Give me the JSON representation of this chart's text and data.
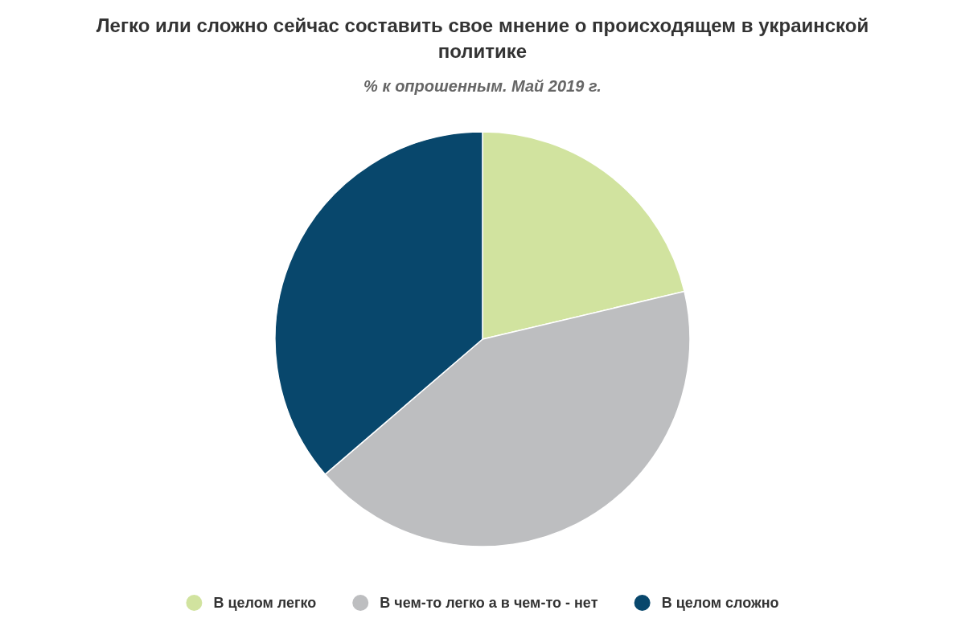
{
  "chart_data": {
    "type": "pie",
    "title": "Легко или сложно сейчас составить свое мнение о происходящем в украинской политике",
    "subtitle": "% к опрошенным. Май 2019 г.",
    "categories": [
      "В целом легко",
      "В чем-то легко а в чем-то - нет",
      "В целом сложно"
    ],
    "values": [
      21.3,
      42.4,
      36.3
    ],
    "colors": [
      "#d1e39f",
      "#bdbec0",
      "#08476c"
    ],
    "legend": "bottom"
  }
}
